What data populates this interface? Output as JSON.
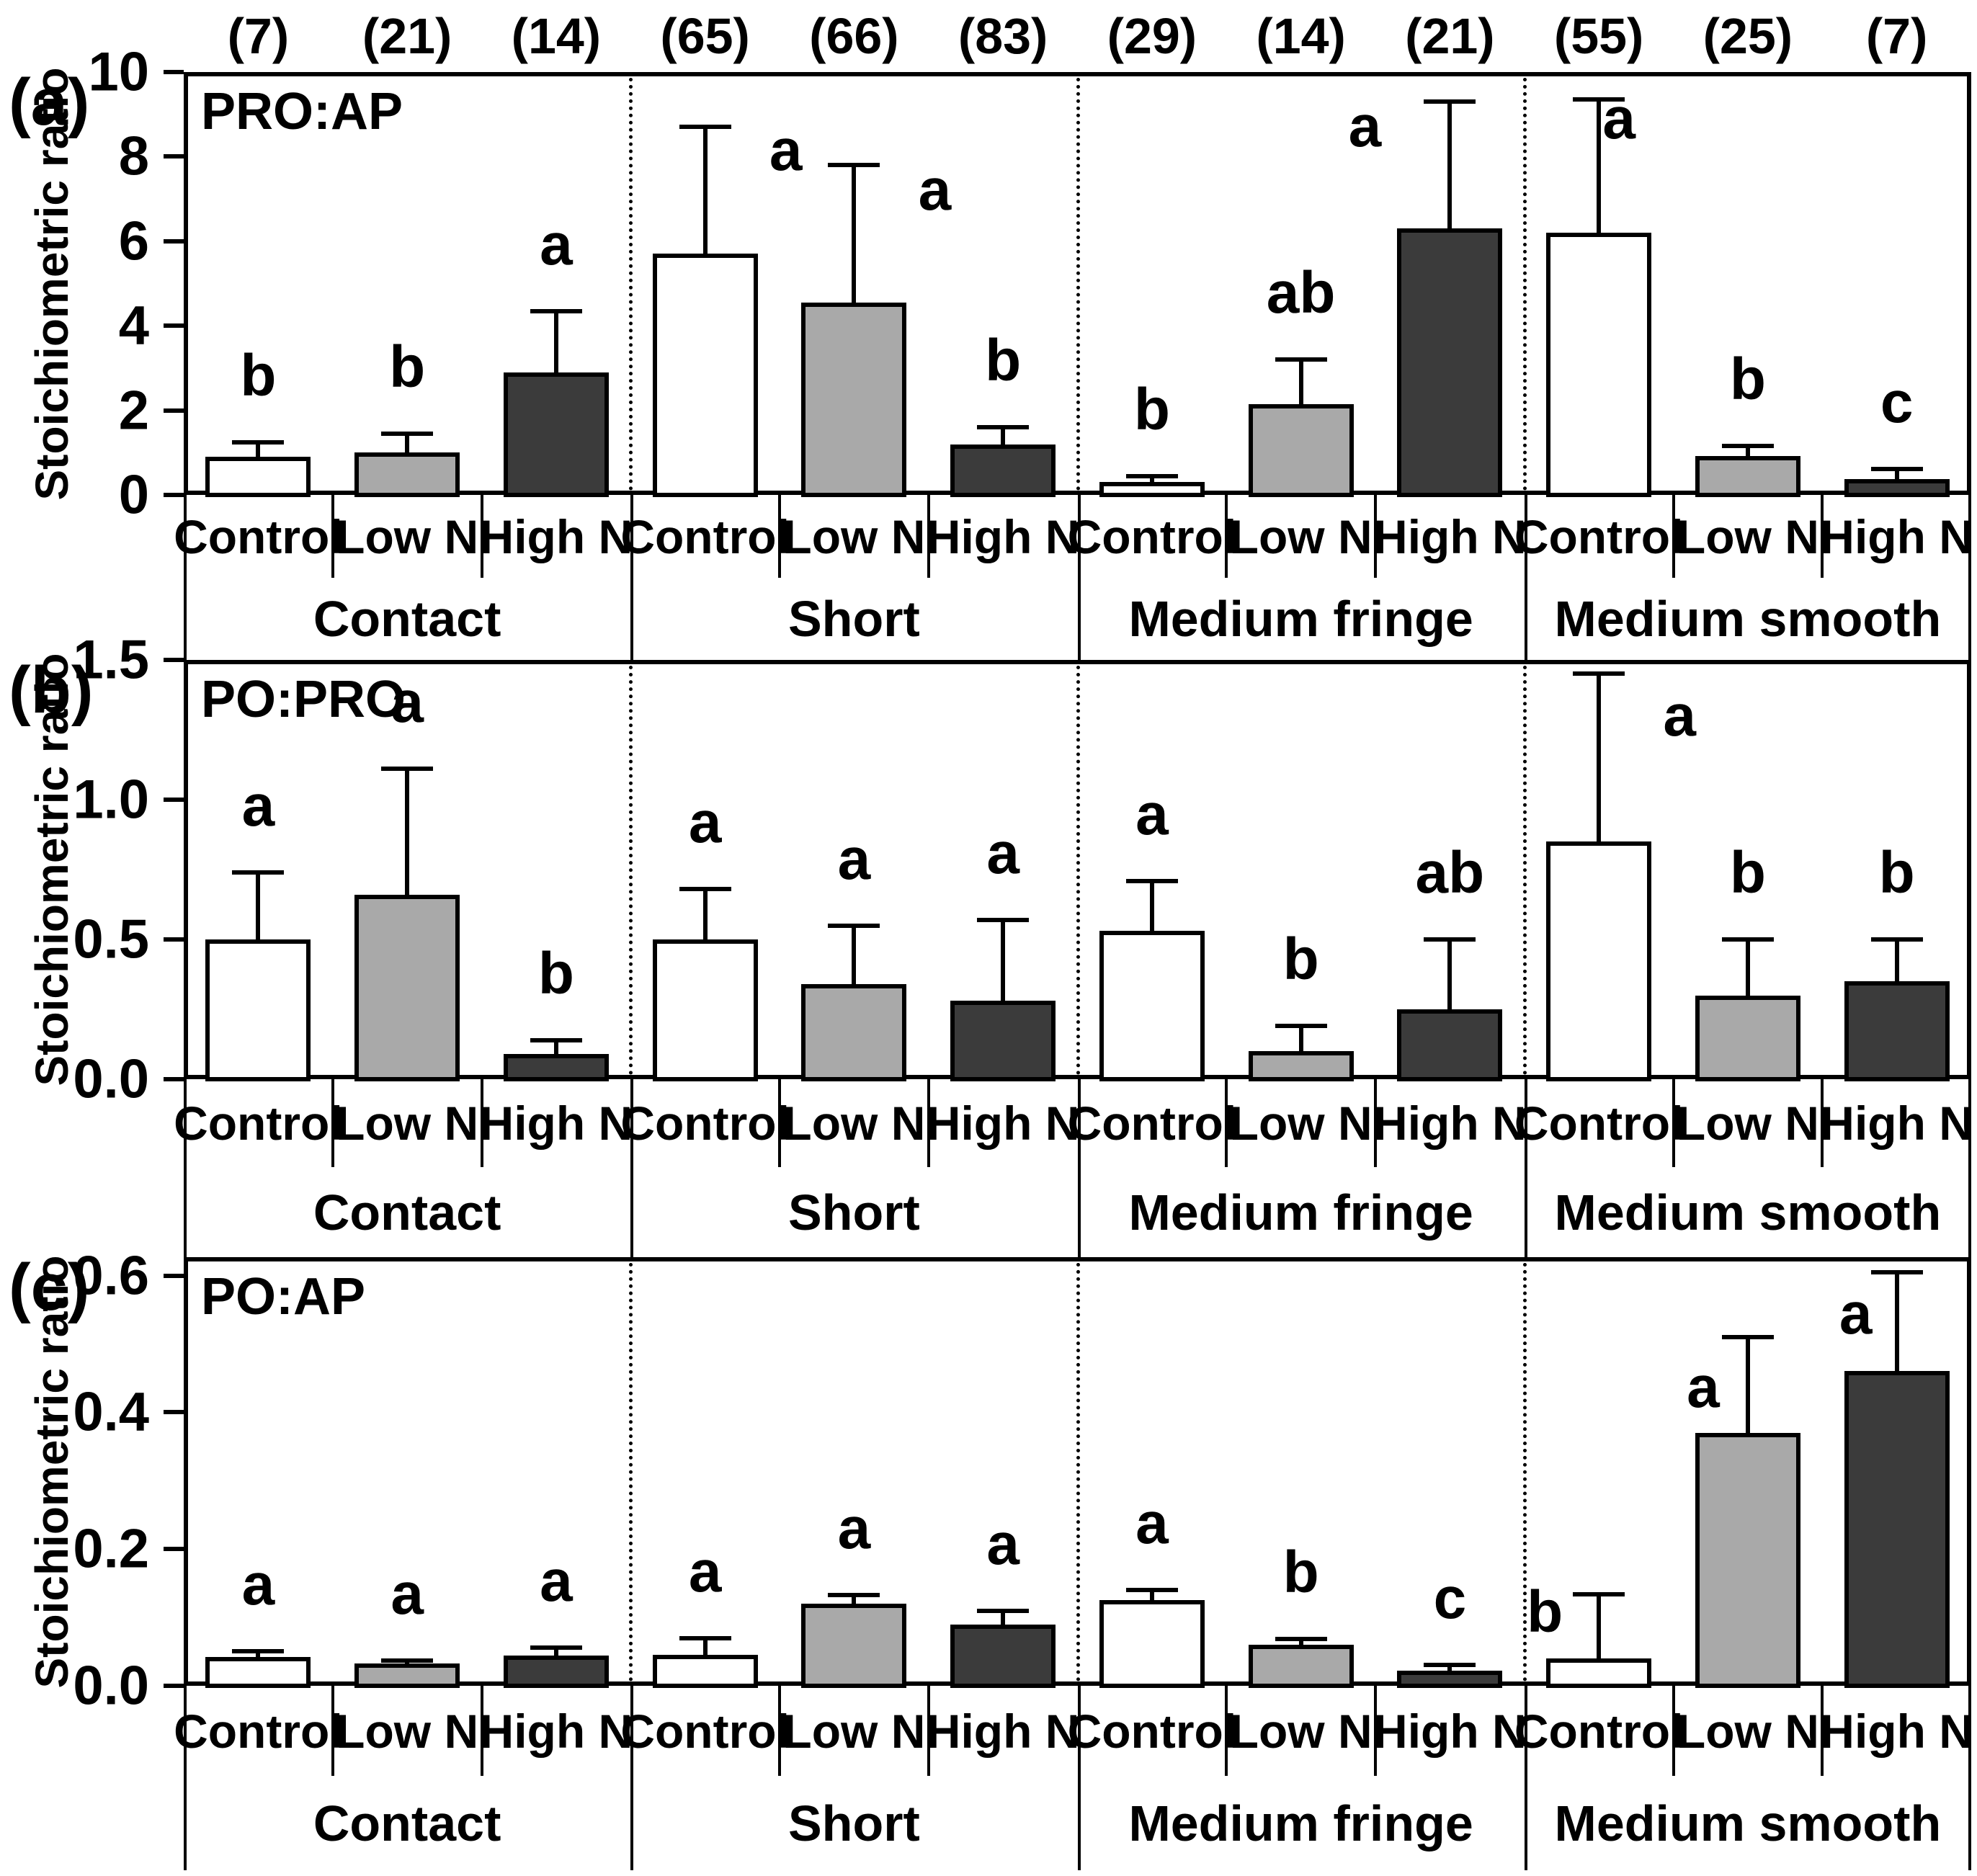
{
  "figure": {
    "y_axis_title": "Stoichiometric ratio",
    "panel_labels": [
      "(a)",
      "(b)",
      "(c)"
    ],
    "groups": [
      "Contact",
      "Short",
      "Medium fringe",
      "Medium smooth"
    ],
    "treatments": [
      "Control",
      "Low N",
      "High N"
    ],
    "sample_sizes": [
      "(7)",
      "(21)",
      "(14)",
      "(65)",
      "(66)",
      "(83)",
      "(29)",
      "(14)",
      "(21)",
      "(55)",
      "(25)",
      "(7)"
    ],
    "colors": {
      "control_fill": "#ffffff",
      "low_n_fill": "#a9a9a9",
      "high_n_fill": "#3b3b3b",
      "line": "#000000",
      "background": "#ffffff"
    }
  },
  "chart_data": [
    {
      "type": "bar",
      "panel": "a",
      "title": "PRO:AP",
      "xlabel": "",
      "ylabel": "Stoichiometric ratio",
      "ylim": [
        0,
        10
      ],
      "frame_top_value": 10,
      "yticks": [
        0,
        2,
        4,
        6,
        8,
        10
      ],
      "ytick_labels": [
        "0",
        "2",
        "4",
        "6",
        "8",
        "10"
      ],
      "grid": false,
      "legend": "none",
      "categories": [
        "Contact",
        "Short",
        "Medium fringe",
        "Medium smooth"
      ],
      "series_labels": [
        "Control",
        "Low N",
        "High N"
      ],
      "sample_sizes": [
        7,
        21,
        14,
        65,
        66,
        83,
        29,
        14,
        21,
        55,
        25,
        7
      ],
      "values": [
        [
          0.9,
          1.0,
          2.9
        ],
        [
          5.7,
          4.55,
          1.2
        ],
        [
          0.3,
          2.15,
          6.3
        ],
        [
          6.2,
          0.92,
          0.37
        ]
      ],
      "error_tops": [
        [
          1.25,
          1.45,
          4.35
        ],
        [
          8.7,
          7.8,
          1.6
        ],
        [
          0.45,
          3.2,
          9.3
        ],
        [
          9.35,
          1.15,
          0.62
        ]
      ],
      "letters": [
        [
          "b",
          "b",
          "a"
        ],
        [
          "a",
          "a",
          "b"
        ],
        [
          "b",
          "ab",
          "a"
        ],
        [
          "a",
          "b",
          "c"
        ]
      ],
      "letter_overrides": {
        "1.0": {
          "dx": 112,
          "y": 8.15
        },
        "1.1": {
          "dx": 112,
          "y": 7.2
        },
        "2.2": {
          "dx": -118,
          "y": 8.7
        },
        "3.0": {
          "dx": 28,
          "y": 8.9
        }
      }
    },
    {
      "type": "bar",
      "panel": "b",
      "title": "PO:PRO",
      "xlabel": "",
      "ylabel": "Stoichiometric ratio",
      "ylim": [
        0,
        1.5
      ],
      "frame_top_value": 1.5,
      "yticks": [
        0,
        0.5,
        1.0,
        1.5
      ],
      "ytick_labels": [
        "0.0",
        "0.5",
        "1.0",
        "1.5"
      ],
      "grid": false,
      "legend": "none",
      "categories": [
        "Contact",
        "Short",
        "Medium fringe",
        "Medium smooth"
      ],
      "series_labels": [
        "Control",
        "Low N",
        "High N"
      ],
      "values": [
        [
          0.5,
          0.66,
          0.09
        ],
        [
          0.5,
          0.34,
          0.28
        ],
        [
          0.53,
          0.1,
          0.25
        ],
        [
          0.85,
          0.3,
          0.35
        ]
      ],
      "error_tops": [
        [
          0.74,
          1.11,
          0.14
        ],
        [
          0.68,
          0.55,
          0.57
        ],
        [
          0.71,
          0.19,
          0.5
        ],
        [
          1.45,
          0.5,
          0.5
        ]
      ],
      "letters": [
        [
          "a",
          "a",
          "b"
        ],
        [
          "a",
          "a",
          "a"
        ],
        [
          "a",
          "b",
          "ab"
        ],
        [
          "a",
          "b",
          "b"
        ]
      ],
      "letter_overrides": {
        "3.0": {
          "dx": 112,
          "y": 1.3
        }
      }
    },
    {
      "type": "bar",
      "panel": "c",
      "title": "PO:AP",
      "xlabel": "",
      "ylabel": "Stoichiometric ratio",
      "ylim": [
        0,
        0.6
      ],
      "frame_top_value": 0.627,
      "yticks": [
        0,
        0.2,
        0.4,
        0.6
      ],
      "ytick_labels": [
        "0.0",
        "0.2",
        "0.4",
        "0.6"
      ],
      "grid": false,
      "legend": "none",
      "categories": [
        "Contact",
        "Short",
        "Medium fringe",
        "Medium smooth"
      ],
      "series_labels": [
        "Control",
        "Low N",
        "High N"
      ],
      "values": [
        [
          0.042,
          0.033,
          0.044
        ],
        [
          0.045,
          0.12,
          0.09
        ],
        [
          0.125,
          0.06,
          0.022
        ],
        [
          0.04,
          0.37,
          0.46
        ]
      ],
      "error_tops": [
        [
          0.051,
          0.037,
          0.056
        ],
        [
          0.07,
          0.133,
          0.11
        ],
        [
          0.14,
          0.068,
          0.031
        ],
        [
          0.134,
          0.51,
          0.605
        ]
      ],
      "letters": [
        [
          "a",
          "a",
          "a"
        ],
        [
          "a",
          "a",
          "a"
        ],
        [
          "a",
          "b",
          "c"
        ],
        [
          "b",
          "a",
          "a"
        ]
      ],
      "letter_overrides": {
        "3.0": {
          "dx": -75,
          "y": 0.107
        },
        "3.1": {
          "dx": -62,
          "y": 0.436
        },
        "3.2": {
          "dx": -57,
          "y": 0.544
        }
      }
    }
  ]
}
